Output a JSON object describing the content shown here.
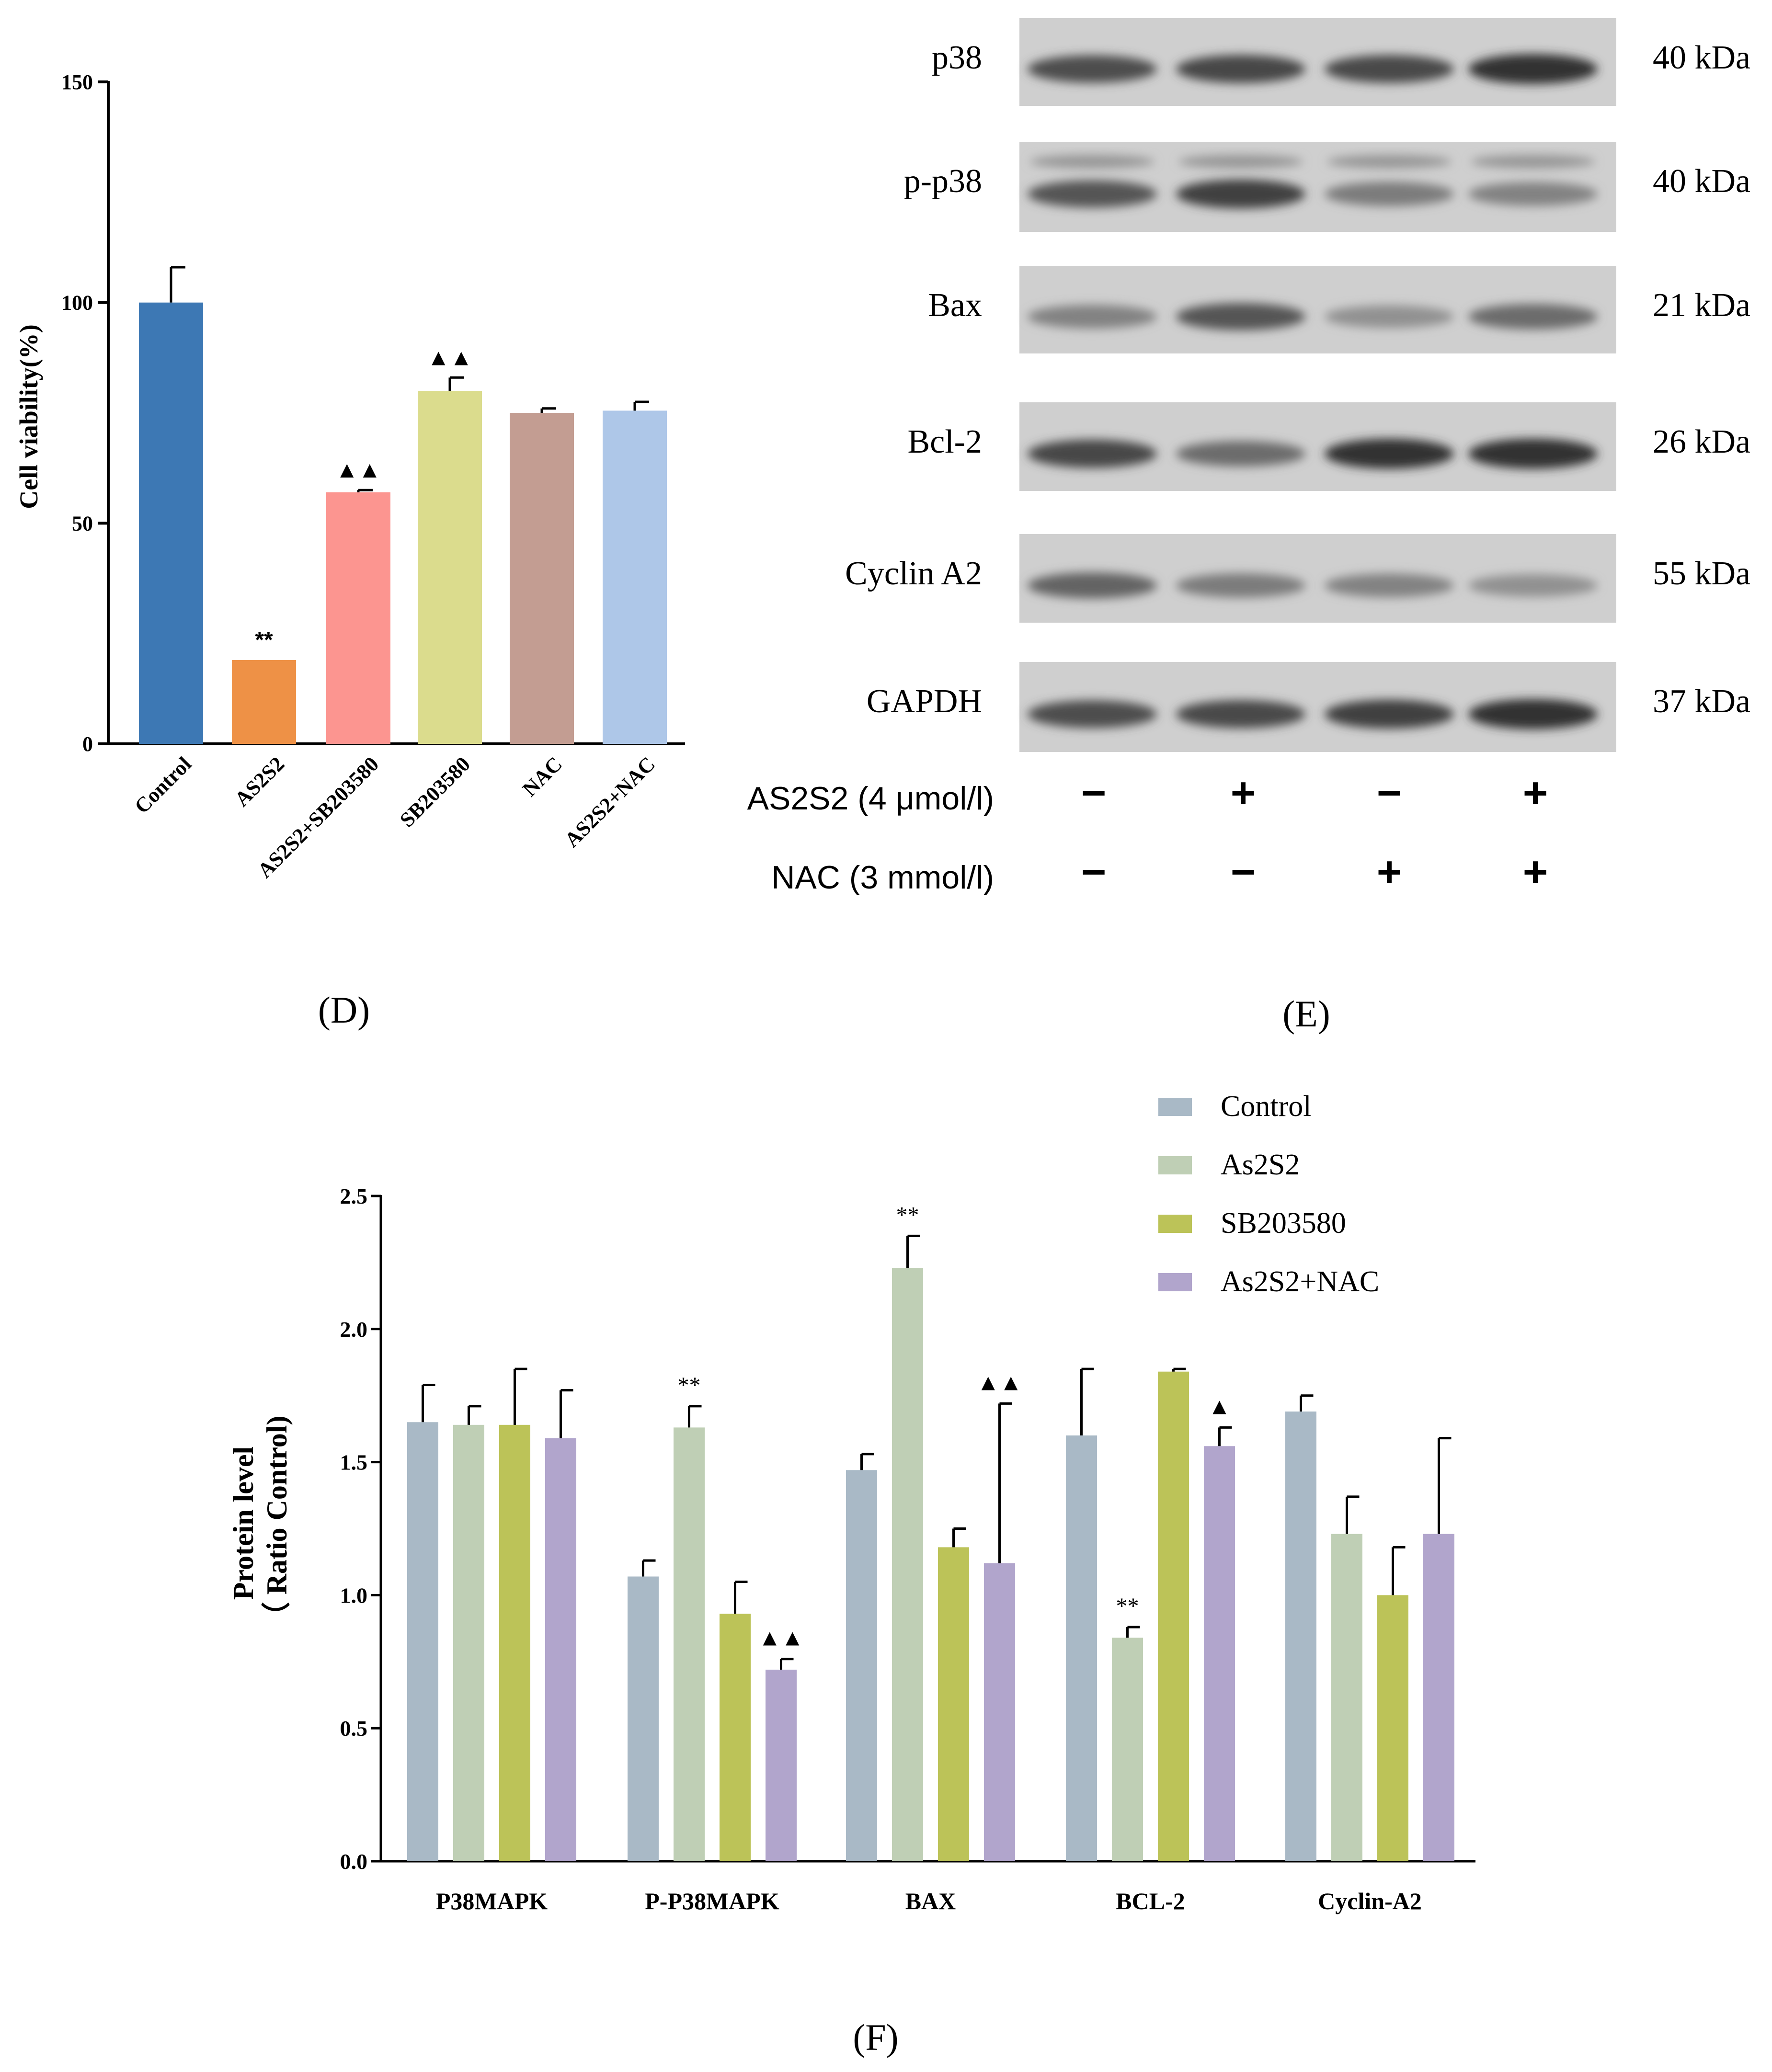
{
  "panel_labels": {
    "d": "(D)",
    "e": "(E)",
    "f": "(F)"
  },
  "chart_data": [
    {
      "id": "D",
      "type": "bar",
      "title": "",
      "xlabel": "",
      "ylabel": "Cell viability(%)",
      "ylim": [
        0,
        150
      ],
      "yticks": [
        0,
        50,
        100,
        150
      ],
      "categories": [
        "Control",
        "AS2S2",
        "AS2S2+SB203580",
        "SB203580",
        "NAC",
        "AS2S2+NAC"
      ],
      "values": [
        100,
        19,
        57,
        80,
        75,
        75.5
      ],
      "errors": [
        8,
        0,
        0.5,
        3,
        1,
        2
      ],
      "colors": [
        "#3d78b4",
        "#ee9146",
        "#fc9590",
        "#dbdc8d",
        "#c39d92",
        "#aec7e8"
      ],
      "annotations": [
        "",
        "**",
        "▲▲",
        "▲▲",
        "",
        ""
      ],
      "grid": false
    },
    {
      "id": "F",
      "type": "bar",
      "title": "",
      "xlabel": "",
      "ylabel_line1": "Protein level",
      "ylabel_line2": "（ Ratio Control)",
      "ylim": [
        0,
        2.5
      ],
      "yticks": [
        "0.0",
        "0.5",
        "1.0",
        "1.5",
        "2.0",
        "2.5"
      ],
      "categories": [
        "P38MAPK",
        "P-P38MAPK",
        "BAX",
        "BCL-2",
        "Cyclin-A2"
      ],
      "series": [
        {
          "name": "Control",
          "color": "#a9b9c6",
          "values": [
            1.65,
            1.07,
            1.47,
            1.6,
            1.69
          ],
          "errors": [
            0.14,
            0.06,
            0.06,
            0.25,
            0.06
          ],
          "annotations": [
            "",
            "",
            "",
            "",
            ""
          ]
        },
        {
          "name": "As2S2",
          "color": "#bfcfb5",
          "values": [
            1.64,
            1.63,
            2.23,
            0.84,
            1.23
          ],
          "errors": [
            0.07,
            0.08,
            0.12,
            0.04,
            0.14
          ],
          "annotations": [
            "",
            "**",
            "**",
            "**",
            ""
          ]
        },
        {
          "name": "SB203580",
          "color": "#bcc358",
          "values": [
            1.64,
            0.93,
            1.18,
            1.84,
            1.0
          ],
          "errors": [
            0.21,
            0.12,
            0.07,
            0.01,
            0.18
          ],
          "annotations": [
            "",
            "",
            "",
            "",
            ""
          ]
        },
        {
          "name": "As2S2+NAC",
          "color": "#b1a5cc",
          "values": [
            1.59,
            0.72,
            1.12,
            1.56,
            1.23
          ],
          "errors": [
            0.18,
            0.04,
            0.6,
            0.07,
            0.36
          ],
          "annotations": [
            "",
            "▲▲",
            "▲▲",
            "▲",
            ""
          ]
        }
      ],
      "legend_position": "top-right",
      "grid": false
    }
  ],
  "blot": {
    "bands": [
      {
        "label": "p38",
        "kda": "40 kDa"
      },
      {
        "label": "p-p38",
        "kda": "40 kDa"
      },
      {
        "label": "Bax",
        "kda": "21 kDa"
      },
      {
        "label": "Bcl-2",
        "kda": "26 kDa"
      },
      {
        "label": "Cyclin A2",
        "kda": "55 kDa"
      },
      {
        "label": "GAPDH",
        "kda": "37 kDa"
      }
    ],
    "band_intensity": [
      [
        0.75,
        0.8,
        0.78,
        0.95
      ],
      [
        0.7,
        0.85,
        0.45,
        0.4
      ],
      [
        0.4,
        0.7,
        0.3,
        0.55
      ],
      [
        0.8,
        0.55,
        0.95,
        0.95
      ],
      [
        0.6,
        0.45,
        0.4,
        0.3
      ],
      [
        0.75,
        0.78,
        0.85,
        0.95
      ]
    ],
    "treatments": [
      {
        "label": "AS2S2 (4 μmol/l)",
        "signs": [
          "−",
          "+",
          "−",
          "+"
        ]
      },
      {
        "label": "NAC (3 mmol/l)",
        "signs": [
          "−",
          "−",
          "+",
          "+"
        ]
      }
    ]
  }
}
